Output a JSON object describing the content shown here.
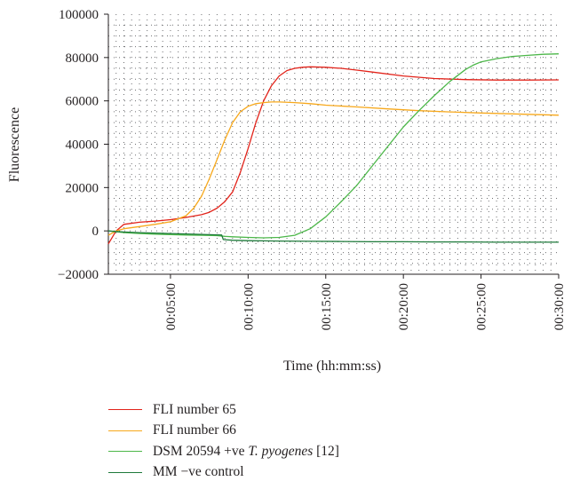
{
  "chart_data": {
    "type": "line",
    "title": "",
    "xlabel": "Time (hh:mm:ss)",
    "ylabel": "Fluorescence",
    "xlim_seconds": [
      60,
      1800
    ],
    "ylim": [
      -20000,
      100000
    ],
    "yticks": [
      -20000,
      0,
      20000,
      40000,
      60000,
      80000,
      100000
    ],
    "ytick_labels": [
      "−20000",
      "0",
      "20000",
      "40000",
      "60000",
      "80000",
      "100000"
    ],
    "xticks_seconds": [
      300,
      600,
      900,
      1200,
      1500,
      1800
    ],
    "xtick_labels": [
      "00:05:00",
      "00:10:00",
      "00:15:00",
      "00:20:00",
      "00:25:00",
      "00:30:00"
    ],
    "grid": "dotted",
    "legend_position": "bottom",
    "series": [
      {
        "name": "FLI number 65",
        "color": "#e2231a",
        "x_seconds": [
          60,
          90,
          120,
          180,
          240,
          300,
          360,
          420,
          450,
          480,
          510,
          540,
          570,
          600,
          630,
          660,
          690,
          720,
          750,
          780,
          810,
          840,
          900,
          960,
          1020,
          1080,
          1200,
          1320,
          1440,
          1560,
          1680,
          1800
        ],
        "values": [
          -6000,
          0,
          3000,
          4000,
          4500,
          5200,
          6200,
          7500,
          8600,
          10500,
          13500,
          18000,
          27000,
          38000,
          50000,
          60000,
          67000,
          71500,
          74000,
          75000,
          75500,
          75700,
          75500,
          75000,
          74200,
          73300,
          71500,
          70300,
          69800,
          69600,
          69600,
          69700
        ]
      },
      {
        "name": "FLI number 66",
        "color": "#f7a81b",
        "x_seconds": [
          60,
          90,
          120,
          180,
          240,
          300,
          360,
          390,
          420,
          450,
          480,
          510,
          540,
          570,
          600,
          630,
          660,
          690,
          720,
          780,
          840,
          900,
          1020,
          1140,
          1260,
          1380,
          1500,
          1620,
          1740,
          1800
        ],
        "values": [
          -2000,
          0,
          1000,
          2000,
          3000,
          4200,
          7000,
          10500,
          16000,
          24000,
          33000,
          42000,
          50000,
          55000,
          57500,
          58700,
          59200,
          59500,
          59500,
          59200,
          58700,
          58000,
          57200,
          56300,
          55500,
          54900,
          54400,
          54000,
          53600,
          53400
        ]
      },
      {
        "name": "DSM 20594 +ve T. pyogenes [12]",
        "color": "#4cb749",
        "x_seconds": [
          60,
          120,
          180,
          240,
          300,
          360,
          420,
          480,
          510,
          540,
          600,
          660,
          720,
          780,
          840,
          900,
          960,
          1020,
          1080,
          1140,
          1200,
          1260,
          1320,
          1380,
          1440,
          1470,
          1500,
          1560,
          1620,
          1680,
          1740,
          1800
        ],
        "values": [
          0,
          -800,
          -1200,
          -1500,
          -1700,
          -1900,
          -2000,
          -2200,
          -2500,
          -2700,
          -3000,
          -3200,
          -3000,
          -2000,
          1000,
          6500,
          13500,
          21000,
          30000,
          39000,
          48000,
          55500,
          62500,
          69000,
          74500,
          76500,
          78000,
          79500,
          80500,
          81000,
          81500,
          81700
        ]
      },
      {
        "name": "MM −ve control",
        "color": "#1f7a3b",
        "x_seconds": [
          60,
          120,
          180,
          240,
          300,
          360,
          420,
          480,
          498,
          504,
          540,
          600,
          660,
          720,
          840,
          960,
          1080,
          1200,
          1320,
          1440,
          1560,
          1680,
          1800
        ],
        "values": [
          0,
          -500,
          -800,
          -1000,
          -1200,
          -1400,
          -1600,
          -1800,
          -1900,
          -4000,
          -4300,
          -4500,
          -4600,
          -4700,
          -4800,
          -4900,
          -5000,
          -5000,
          -5100,
          -5100,
          -5200,
          -5200,
          -5200
        ]
      }
    ]
  },
  "legend": {
    "items": [
      {
        "label": "FLI number 65",
        "color": "#e2231a"
      },
      {
        "label": "FLI number 66",
        "color": "#f7a81b"
      },
      {
        "label_prefix": "DSM 20594 +ve ",
        "label_italic": "T. pyogenes",
        "label_suffix": " [12]",
        "color": "#4cb749"
      },
      {
        "label": "MM −ve control",
        "color": "#1f7a3b"
      }
    ]
  }
}
